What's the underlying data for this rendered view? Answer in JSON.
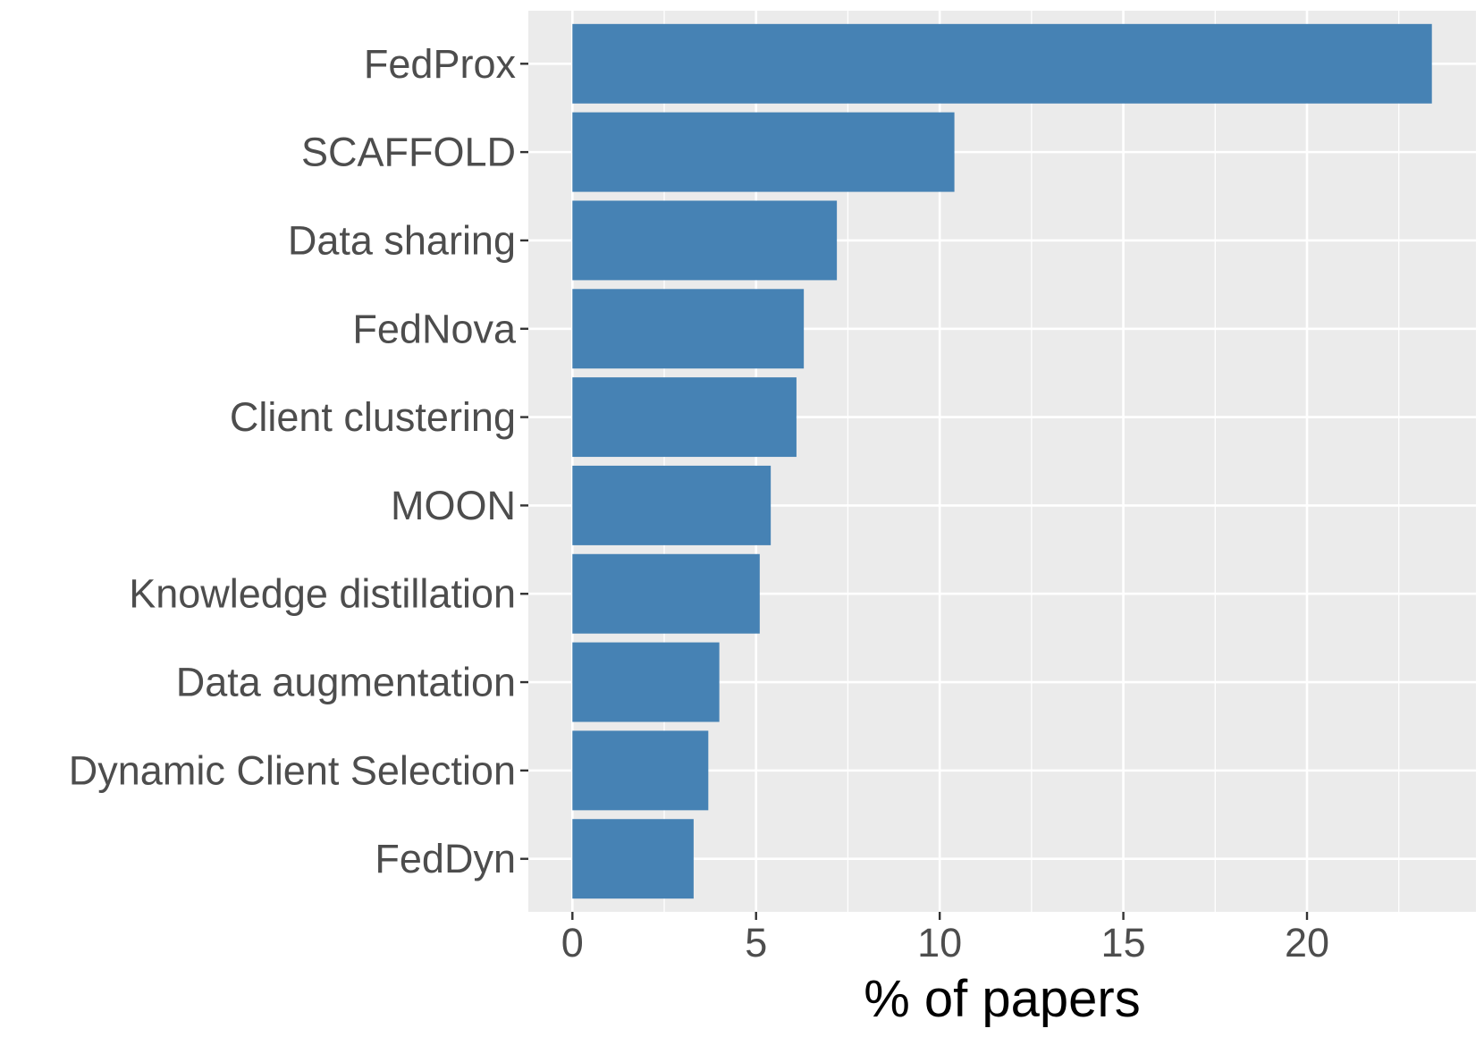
{
  "chart_data": {
    "type": "bar",
    "orientation": "horizontal",
    "categories": [
      "FedProx",
      "SCAFFOLD",
      "Data sharing",
      "FedNova",
      "Client clustering",
      "MOON",
      "Knowledge distillation",
      "Data augmentation",
      "Dynamic Client Selection",
      "FedDyn"
    ],
    "values": [
      23.4,
      10.4,
      7.2,
      6.3,
      6.1,
      5.4,
      5.1,
      4.0,
      3.7,
      3.3
    ],
    "title": "",
    "xlabel": "% of papers",
    "ylabel": "",
    "xlim": [
      -1.2,
      24.6
    ],
    "x_ticks": [
      0,
      5,
      10,
      15,
      20
    ],
    "x_tick_labels": [
      "0",
      "5",
      "10",
      "15",
      "20"
    ],
    "grid": true,
    "legend": "none",
    "colors": {
      "bar": "#4682b4",
      "panel_background": "#ebebeb",
      "gridline": "#ffffff",
      "tick_label": "#4d4d4d",
      "axis_title": "#000000"
    }
  }
}
